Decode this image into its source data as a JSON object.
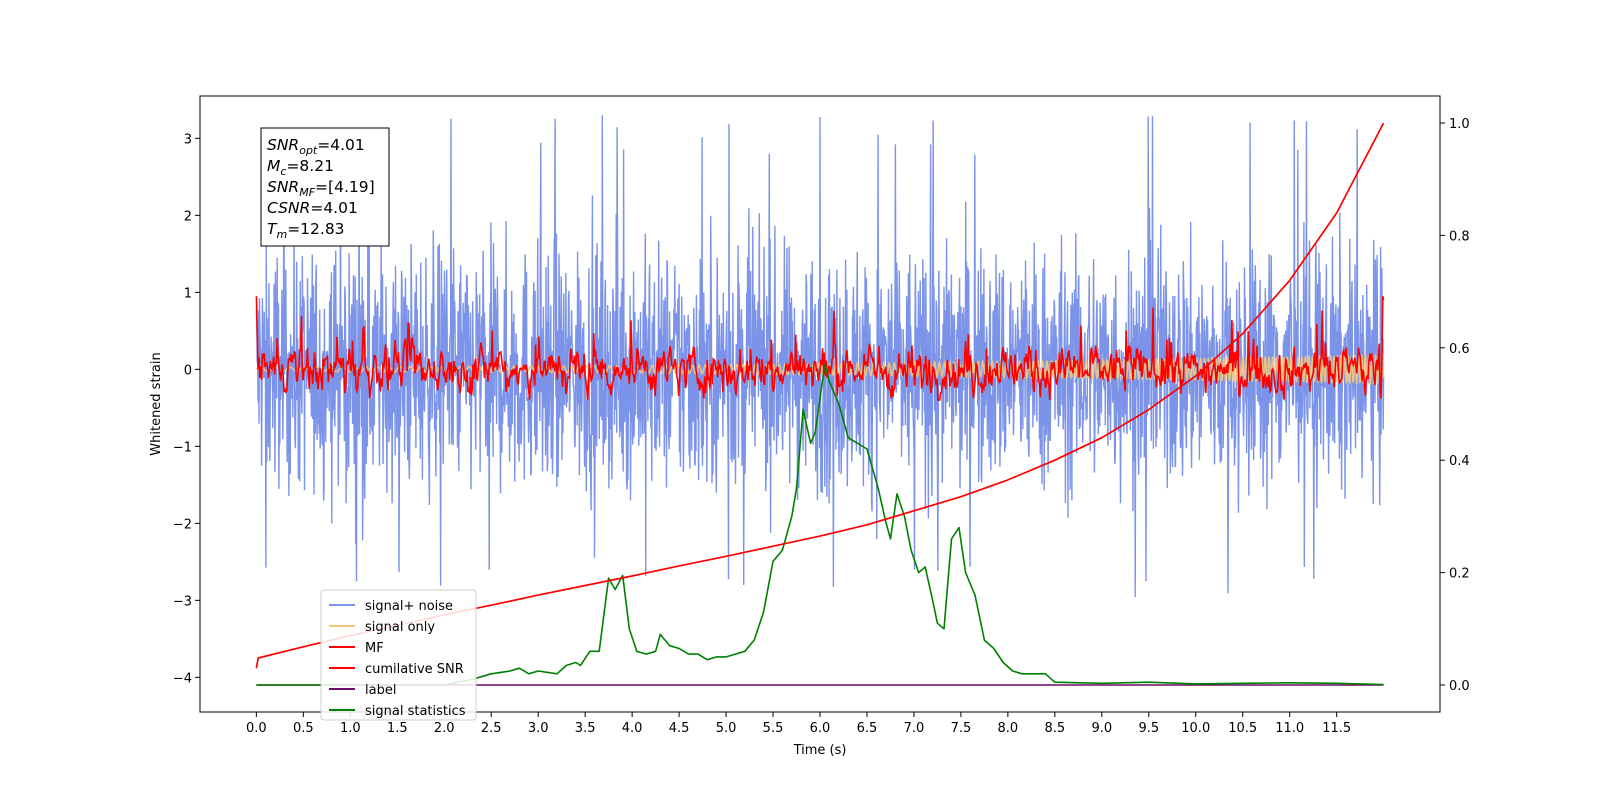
{
  "chart_data": {
    "type": "line",
    "xlabel": "Time (s)",
    "ylabel": "Whitened strain",
    "xlim": [
      -0.6,
      12.6
    ],
    "ylim": [
      -4.45,
      3.55
    ],
    "ylim_right": [
      -0.048,
      1.048
    ],
    "x_ticks": [
      "0.0",
      "0.5",
      "1.0",
      "1.5",
      "2.0",
      "2.5",
      "3.0",
      "3.5",
      "4.0",
      "4.5",
      "5.0",
      "5.5",
      "6.0",
      "6.5",
      "7.0",
      "7.5",
      "8.0",
      "8.5",
      "9.0",
      "9.5",
      "10.0",
      "10.5",
      "11.0",
      "11.5"
    ],
    "y_ticks_left": [
      "3",
      "2",
      "1",
      "0",
      "−1",
      "−2",
      "−3",
      "−4"
    ],
    "y_ticks_right": [
      "1.0",
      "0.8",
      "0.6",
      "0.4",
      "0.2",
      "0.0"
    ],
    "grid": false,
    "legend_position": "lower-left",
    "info_box": [
      {
        "main": "SNR",
        "sub": "opt",
        "value": "=4.01"
      },
      {
        "main": "M",
        "sub": "c",
        "value": "=8.21"
      },
      {
        "main": "SNR",
        "sub": "MF",
        "value": "=[4.19]"
      },
      {
        "main": "CSNR",
        "sub": "",
        "value": "=4.01"
      },
      {
        "main": "T",
        "sub": "m",
        "value": "=12.83"
      }
    ],
    "series": [
      {
        "name": "signal+ noise",
        "color": "#7b93e8",
        "axis": "left",
        "kind": "noise",
        "x_range": [
          0.0,
          12.0
        ],
        "amplitude_range": [
          -3.0,
          3.35
        ]
      },
      {
        "name": "signal only",
        "color": "#f5c87a",
        "axis": "left",
        "kind": "chirp",
        "x_range": [
          0.0,
          12.0
        ],
        "amplitude_start": 0.03,
        "amplitude_end": 0.2
      },
      {
        "name": "MF",
        "color": "#ff0000",
        "axis": "left",
        "kind": "matched-filter",
        "x_range": [
          0.0,
          12.0
        ],
        "amplitude_range": [
          -0.4,
          0.95
        ]
      },
      {
        "name": "cumilative SNR",
        "color": "#ff0000",
        "axis": "right",
        "x": [
          0.0,
          0.02,
          0.5,
          1.0,
          1.5,
          2.0,
          2.5,
          3.0,
          3.5,
          4.0,
          4.5,
          5.0,
          5.5,
          6.0,
          6.5,
          7.0,
          7.5,
          8.0,
          8.5,
          9.0,
          9.5,
          10.0,
          10.5,
          11.0,
          11.5,
          12.0
        ],
        "y": [
          0.03,
          0.048,
          0.068,
          0.088,
          0.106,
          0.125,
          0.142,
          0.16,
          0.177,
          0.194,
          0.212,
          0.229,
          0.247,
          0.265,
          0.285,
          0.31,
          0.335,
          0.365,
          0.4,
          0.44,
          0.49,
          0.55,
          0.625,
          0.72,
          0.84,
          1.0
        ]
      },
      {
        "name": "label",
        "color": "#6a0d6a",
        "axis": "right",
        "x": [
          0.0,
          12.0
        ],
        "y": [
          0.0,
          0.0
        ]
      },
      {
        "name": "signal statistics",
        "color": "#008000",
        "axis": "right",
        "x": [
          0.0,
          0.5,
          1.0,
          1.5,
          2.0,
          2.3,
          2.5,
          2.7,
          2.8,
          2.9,
          3.0,
          3.2,
          3.3,
          3.4,
          3.45,
          3.55,
          3.65,
          3.75,
          3.82,
          3.9,
          3.97,
          4.05,
          4.15,
          4.25,
          4.3,
          4.4,
          4.5,
          4.6,
          4.7,
          4.8,
          4.9,
          5.0,
          5.1,
          5.2,
          5.3,
          5.4,
          5.5,
          5.6,
          5.7,
          5.75,
          5.82,
          5.9,
          5.95,
          6.05,
          6.1,
          6.2,
          6.3,
          6.4,
          6.5,
          6.62,
          6.7,
          6.75,
          6.82,
          6.9,
          6.97,
          7.05,
          7.12,
          7.2,
          7.25,
          7.32,
          7.4,
          7.48,
          7.55,
          7.65,
          7.75,
          7.85,
          7.95,
          8.05,
          8.15,
          8.3,
          8.4,
          8.5,
          9.0,
          9.5,
          10.0,
          10.5,
          11.0,
          11.5,
          12.0
        ],
        "y": [
          0.0,
          0.0,
          0.0,
          0.0,
          0.0,
          0.01,
          0.02,
          0.025,
          0.03,
          0.02,
          0.025,
          0.02,
          0.035,
          0.04,
          0.035,
          0.06,
          0.06,
          0.19,
          0.17,
          0.195,
          0.1,
          0.06,
          0.055,
          0.06,
          0.09,
          0.07,
          0.065,
          0.055,
          0.055,
          0.045,
          0.05,
          0.05,
          0.055,
          0.06,
          0.08,
          0.13,
          0.22,
          0.24,
          0.3,
          0.35,
          0.49,
          0.43,
          0.45,
          0.57,
          0.54,
          0.5,
          0.44,
          0.43,
          0.42,
          0.35,
          0.29,
          0.26,
          0.34,
          0.3,
          0.24,
          0.2,
          0.21,
          0.15,
          0.11,
          0.1,
          0.26,
          0.28,
          0.2,
          0.16,
          0.08,
          0.065,
          0.04,
          0.025,
          0.02,
          0.02,
          0.02,
          0.005,
          0.003,
          0.005,
          0.002,
          0.003,
          0.004,
          0.003,
          0.001
        ]
      }
    ]
  }
}
